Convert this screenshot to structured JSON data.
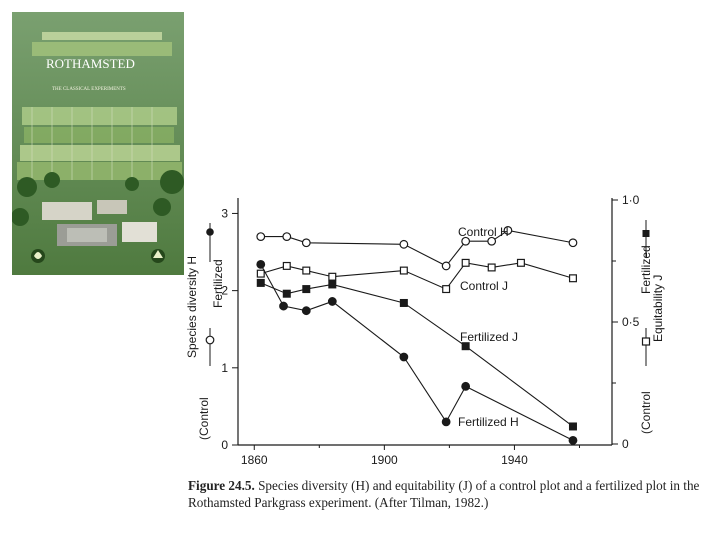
{
  "cover": {
    "title": "ROTHAMSTED",
    "subtitle": "THE CLASSICAL EXPERIMENTS"
  },
  "chart_data": {
    "type": "line",
    "x_ticks": [
      1860,
      1900,
      1940
    ],
    "xlim": [
      1855,
      1970
    ],
    "left_axis": {
      "label_top": "Fertilized",
      "label_middle": "Species diversity H",
      "label_bottom": "(Control",
      "ticks": [
        0,
        1,
        2,
        3
      ],
      "ylim": [
        0,
        3.2
      ]
    },
    "right_axis": {
      "label_top": "Fertilized",
      "label_middle": "Equitability J",
      "label_bottom": "(Control",
      "ticks": [
        "0",
        "0·5",
        "1·0"
      ],
      "tick_values": [
        0,
        0.5,
        1.0
      ],
      "ylim": [
        0,
        1.0
      ]
    },
    "series": [
      {
        "name": "Control H",
        "axis": "left",
        "marker": "open-circle",
        "x": [
          1862,
          1870,
          1876,
          1906,
          1919,
          1925,
          1933,
          1938,
          1958
        ],
        "y": [
          2.7,
          2.7,
          2.62,
          2.6,
          2.32,
          2.64,
          2.64,
          2.78,
          2.62
        ]
      },
      {
        "name": "Control J",
        "axis": "left",
        "marker": "open-square",
        "x": [
          1862,
          1870,
          1876,
          1884,
          1906,
          1919,
          1925,
          1933,
          1942,
          1958
        ],
        "y": [
          2.22,
          2.32,
          2.26,
          2.18,
          2.26,
          2.02,
          2.36,
          2.3,
          2.36,
          2.16
        ]
      },
      {
        "name": "Fertilized J",
        "axis": "left",
        "marker": "filled-square",
        "x": [
          1862,
          1870,
          1876,
          1884,
          1906,
          1925,
          1958
        ],
        "y": [
          2.1,
          1.96,
          2.02,
          2.08,
          1.84,
          1.28,
          0.24
        ]
      },
      {
        "name": "Fertilized H",
        "axis": "left",
        "marker": "filled-circle",
        "x": [
          1862,
          1869,
          1876,
          1884,
          1906,
          1919,
          1925,
          1958
        ],
        "y": [
          2.34,
          1.8,
          1.74,
          1.86,
          1.14,
          0.3,
          0.76,
          0.06
        ]
      }
    ],
    "legend_labels": {
      "control_h": "Control H",
      "control_j": "Control J",
      "fertilized_j": "Fertilized J",
      "fertilized_h": "Fertilized H"
    }
  },
  "caption": {
    "figure_label": "Figure 24.5.",
    "text": "Species diversity (H) and equitability (J) of a control plot and a fertilized plot in the Rothamsted Parkgrass experiment. (After Tilman, 1982.)"
  },
  "colors": {
    "ink": "#1a1a1a",
    "cover_green": "#5f8a4a",
    "cover_light": "#b8c98e"
  }
}
